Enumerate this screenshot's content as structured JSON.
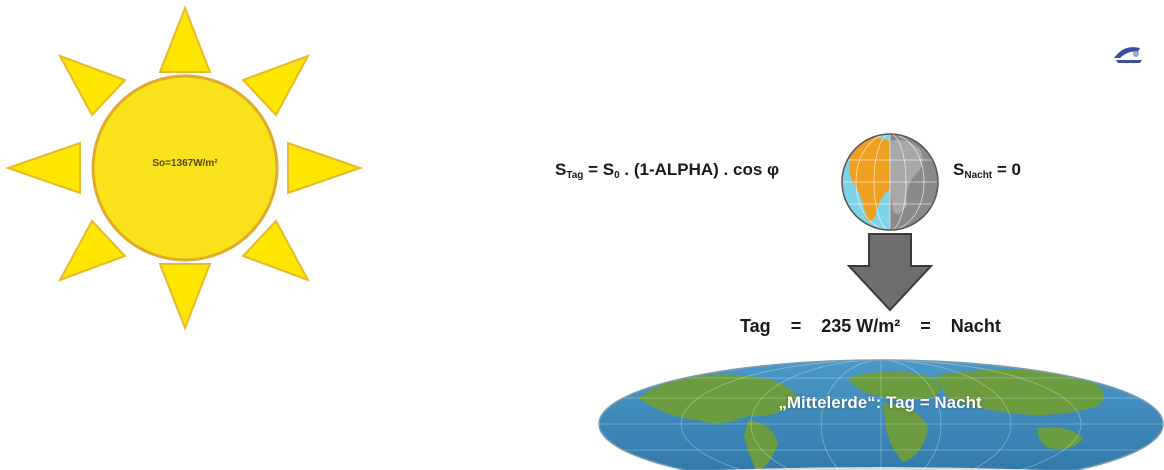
{
  "sun": {
    "label": "So=1367W/m²",
    "fill": "#f7e21b",
    "ray_fill": "#ffe600",
    "outline": "#e3a92a"
  },
  "formula_day": {
    "s": "S",
    "sub": "Tag",
    "mid": " = S",
    "sub0": "0",
    "rest": " . (1-ALPHA) . cos φ"
  },
  "formula_night": {
    "s": "S",
    "sub": "Nacht",
    "rest": " = 0"
  },
  "balance": {
    "left": "Tag",
    "eq1": "=",
    "value": "235 W/m²",
    "eq2": "=",
    "right": "Nacht"
  },
  "world_map": {
    "label": "„Mittelerde“: Tag = Nacht",
    "ocean_color": "#3a86b8",
    "land_color": "#6b9c3f"
  },
  "globe": {
    "day_color": "#f0a020",
    "night_color": "#8a8a8a",
    "ocean_color": "#7fd3e6"
  },
  "arrow": {
    "color": "#6e6e6e"
  }
}
